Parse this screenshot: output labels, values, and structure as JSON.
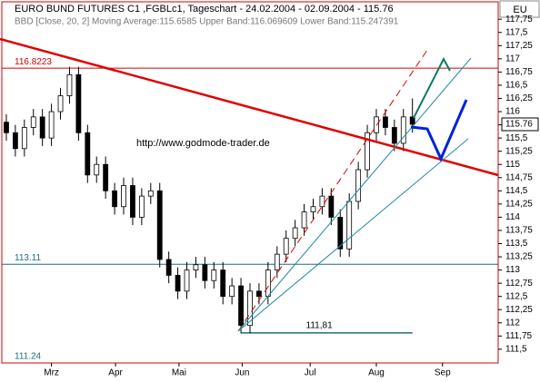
{
  "chart_data": {
    "type": "candlestick",
    "title": "EURO BUND FUTURES C1 ,FGBLc1, Tageschart - 24.02.2004 - 02.09.2004 - 115.76",
    "subtitle": "BBD [Close, 20, 2] Moving Average:115.6585 Upper Band:116.069609 Lower Band:115.247391",
    "annotation": "http://www.godmode-trader.de",
    "symbol_tag": "EU",
    "last_price": 115.76,
    "x": [
      0,
      3,
      6,
      9,
      12,
      15,
      18,
      21,
      24,
      27,
      30,
      33,
      36,
      39,
      42,
      45,
      48,
      51,
      54,
      57,
      60,
      63,
      66,
      69,
      72,
      75,
      78,
      81,
      84,
      87,
      90,
      93,
      96,
      99,
      102,
      105,
      108,
      111,
      114,
      117,
      120,
      123,
      126,
      129,
      132,
      135
    ],
    "open": [
      115.8,
      115.6,
      115.3,
      115.7,
      115.9,
      115.5,
      116.0,
      116.3,
      116.7,
      115.6,
      114.8,
      115.0,
      114.5,
      114.2,
      114.6,
      114.0,
      114.4,
      114.5,
      113.2,
      112.9,
      112.6,
      113.0,
      113.1,
      112.8,
      113.0,
      112.5,
      112.7,
      111.95,
      112.6,
      112.5,
      113.0,
      113.3,
      113.6,
      113.8,
      114.1,
      114.2,
      114.4,
      114.0,
      113.4,
      114.3,
      114.9,
      115.6,
      115.9,
      115.7,
      115.4,
      115.9
    ],
    "high": [
      115.95,
      115.75,
      115.85,
      116.05,
      116.05,
      116.15,
      116.45,
      116.85,
      116.85,
      115.75,
      115.15,
      115.15,
      114.65,
      114.75,
      114.75,
      114.55,
      114.65,
      114.65,
      113.35,
      113.05,
      113.15,
      113.25,
      113.25,
      113.15,
      113.15,
      112.85,
      112.85,
      112.75,
      112.75,
      113.15,
      113.45,
      113.75,
      113.95,
      114.25,
      114.35,
      114.55,
      114.55,
      114.15,
      114.45,
      115.05,
      115.75,
      116.05,
      116.05,
      115.85,
      116.05,
      116.25
    ],
    "low": [
      115.45,
      115.15,
      115.15,
      115.55,
      115.35,
      115.35,
      115.85,
      116.15,
      115.45,
      114.65,
      114.65,
      114.35,
      114.05,
      114.05,
      113.85,
      113.85,
      114.25,
      113.05,
      112.75,
      112.45,
      112.45,
      112.85,
      112.65,
      112.65,
      112.35,
      112.35,
      111.8,
      111.8,
      112.35,
      112.35,
      112.85,
      113.15,
      113.45,
      113.65,
      113.95,
      114.05,
      113.85,
      113.25,
      113.25,
      114.15,
      114.75,
      115.45,
      115.55,
      115.25,
      115.25,
      115.6
    ],
    "close": [
      115.6,
      115.3,
      115.7,
      115.9,
      115.5,
      116.0,
      116.3,
      116.7,
      115.6,
      114.8,
      115.0,
      114.5,
      114.2,
      114.6,
      114.0,
      114.4,
      114.5,
      113.2,
      112.9,
      112.6,
      113.0,
      113.1,
      112.8,
      113.0,
      112.5,
      112.7,
      111.95,
      112.6,
      112.5,
      113.0,
      113.3,
      113.6,
      113.8,
      114.1,
      114.2,
      114.4,
      114.0,
      113.4,
      114.3,
      114.9,
      115.6,
      115.9,
      115.7,
      115.4,
      115.9,
      115.76
    ],
    "xlim": [
      -1.5,
      163.5
    ],
    "xticks": [
      {
        "value": 15,
        "label": "Mrz"
      },
      {
        "value": 36.3,
        "label": "Apr"
      },
      {
        "value": 57.4,
        "label": "Mai"
      },
      {
        "value": 78.4,
        "label": "Jun"
      },
      {
        "value": 101,
        "label": "Jul"
      },
      {
        "value": 123,
        "label": "Aug"
      },
      {
        "value": 145,
        "label": "Sep"
      }
    ],
    "ylim": [
      111.24,
      118.08
    ],
    "yticks": [
      {
        "value": 111.5,
        "label": "111,5"
      },
      {
        "value": 111.75,
        "label": "111,75"
      },
      112,
      {
        "value": 112.25,
        "label": "112,25"
      },
      {
        "value": 112.5,
        "label": "112,5"
      },
      {
        "value": 112.75,
        "label": "112,75"
      },
      113,
      {
        "value": 113.25,
        "label": "113,25"
      },
      {
        "value": 113.5,
        "label": "113,5"
      },
      {
        "value": 113.75,
        "label": "113,75"
      },
      114,
      {
        "value": 114.25,
        "label": "114,25"
      },
      {
        "value": 114.5,
        "label": "114,5"
      },
      {
        "value": 114.75,
        "label": "114,75"
      },
      115,
      {
        "value": 115.25,
        "label": "115,25"
      },
      {
        "value": 115.5,
        "label": "115,5"
      },
      {
        "value": 115.75,
        "label": "115,75"
      },
      116,
      {
        "value": 116.25,
        "label": "116,25"
      },
      {
        "value": 116.5,
        "label": "116,5"
      },
      {
        "value": 116.75,
        "label": "116,75"
      },
      117,
      {
        "value": 117.25,
        "label": "117,25"
      },
      {
        "value": 117.5,
        "label": "117,5"
      },
      {
        "value": 117.75,
        "label": "117,75"
      }
    ],
    "levels": [
      {
        "value": 116.8223,
        "color": "#d00000"
      },
      {
        "value": 113.11,
        "color": "#1f6f7a"
      },
      {
        "value": 111.24,
        "color": "#1f6f7a"
      }
    ],
    "support": {
      "value": 111.81,
      "label": "111,81",
      "color": "#1f6f7a"
    },
    "up_color": "#ffffff",
    "down_color": "#000000"
  }
}
